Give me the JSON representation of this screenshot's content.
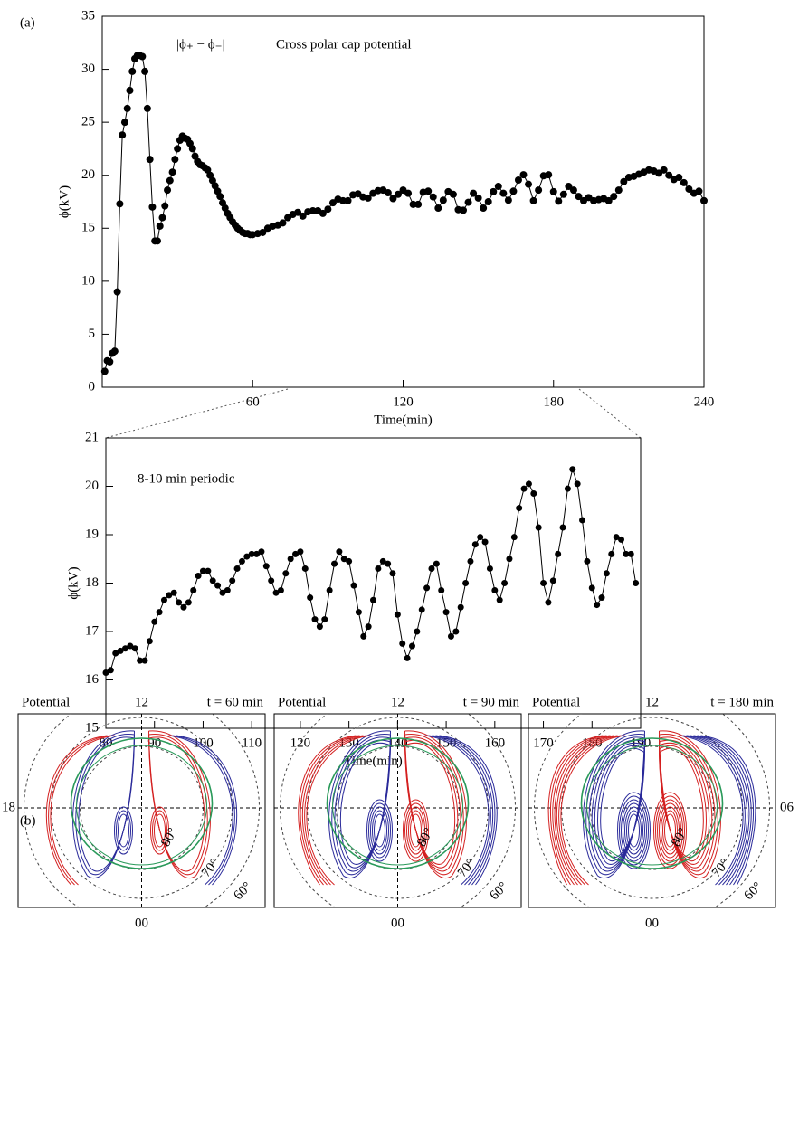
{
  "panel_a_label": "(a)",
  "panel_b_label": "(b)",
  "chart_data": [
    {
      "type": "line",
      "annotation_symbol": "|ϕ₊ − ϕ₋|",
      "annotation": "Cross polar cap potential",
      "x_label": "Time(min)",
      "y_label": "ϕ(kV)",
      "xlim": [
        0,
        240
      ],
      "ylim": [
        0,
        35
      ],
      "xticks": [
        60,
        120,
        180,
        240
      ],
      "yticks": [
        0,
        5,
        10,
        15,
        20,
        25,
        30,
        35
      ],
      "color": "#000000",
      "x": [
        1,
        2,
        3,
        4,
        5,
        6,
        7,
        8,
        9,
        10,
        11,
        12,
        13,
        14,
        15,
        16,
        17,
        18,
        19,
        20,
        21,
        22,
        23,
        24,
        25,
        26,
        27,
        28,
        29,
        30,
        31,
        32,
        33,
        34,
        35,
        36,
        37,
        38,
        39,
        40,
        41,
        42,
        43,
        44,
        45,
        46,
        47,
        48,
        49,
        50,
        51,
        52,
        53,
        54,
        55,
        56,
        57,
        58,
        59,
        60,
        62,
        64,
        66,
        68,
        70,
        72,
        74,
        76,
        78,
        80,
        82,
        84,
        86,
        88,
        90,
        92,
        94,
        96,
        98,
        100,
        102,
        104,
        106,
        108,
        110,
        112,
        114,
        116,
        118,
        120,
        122,
        124,
        126,
        128,
        130,
        132,
        134,
        136,
        138,
        140,
        142,
        144,
        146,
        148,
        150,
        152,
        154,
        156,
        158,
        160,
        162,
        164,
        166,
        168,
        170,
        172,
        174,
        176,
        178,
        180,
        182,
        184,
        186,
        188,
        190,
        192,
        194,
        196,
        198,
        200,
        202,
        204,
        206,
        208,
        210,
        212,
        214,
        216,
        218,
        220,
        222,
        224,
        226,
        228,
        230,
        232,
        234,
        236,
        238,
        240
      ],
      "values": [
        1.5,
        2.5,
        2.4,
        3.2,
        3.4,
        9,
        17.3,
        23.8,
        25,
        26.3,
        28,
        29.8,
        31,
        31.3,
        31.3,
        31.2,
        29.8,
        26.3,
        21.5,
        17,
        13.8,
        13.8,
        15.2,
        16,
        17.1,
        18.6,
        19.5,
        20.3,
        21.5,
        22.5,
        23.3,
        23.7,
        23.5,
        23.4,
        23,
        22.5,
        21.8,
        21.3,
        21,
        20.9,
        20.7,
        20.5,
        20,
        19.5,
        19,
        18.5,
        18,
        17.4,
        16.9,
        16.4,
        16,
        15.6,
        15.3,
        15,
        14.8,
        14.6,
        14.5,
        14.5,
        14.4,
        14.4,
        14.5,
        14.6,
        15,
        15.2,
        15.3,
        15.5,
        16,
        16.3,
        16.5,
        16.15,
        16.55,
        16.65,
        16.65,
        16.4,
        16.8,
        17.4,
        17.75,
        17.6,
        17.6,
        18.15,
        18.25,
        17.95,
        17.85,
        18.3,
        18.55,
        18.6,
        18.35,
        17.8,
        18.2,
        18.6,
        18.3,
        17.25,
        17.25,
        18.4,
        18.5,
        17.95,
        16.9,
        17.65,
        18.45,
        18.2,
        16.75,
        16.7,
        17.45,
        18.3,
        17.85,
        16.9,
        17.5,
        18.45,
        18.95,
        18.3,
        17.65,
        18.5,
        19.55,
        20.05,
        19.15,
        17.6,
        18.6,
        19.95,
        20.05,
        18.45,
        17.55,
        18.2,
        18.95,
        18.6,
        18.0,
        17.6,
        17.9,
        17.6,
        17.7,
        17.8,
        17.6,
        18.0,
        18.6,
        19.4,
        19.8,
        19.9,
        20.1,
        20.3,
        20.5,
        20.4,
        20.2,
        20.5,
        20.0,
        19.6,
        19.8,
        19.3,
        18.7,
        18.3,
        18.5,
        17.6
      ]
    },
    {
      "type": "line",
      "annotation": "8-10 min periodic",
      "x_label": "Time(min)",
      "y_label": "ϕ(kV)",
      "xlim": [
        80,
        190
      ],
      "ylim": [
        15,
        21
      ],
      "xticks": [
        80,
        90,
        100,
        110,
        120,
        130,
        140,
        150,
        160,
        170,
        180,
        190
      ],
      "yticks": [
        15,
        16,
        17,
        18,
        19,
        20,
        21
      ],
      "color": "#000000",
      "x": [
        80,
        81,
        82,
        83,
        84,
        85,
        86,
        87,
        88,
        89,
        90,
        91,
        92,
        93,
        94,
        95,
        96,
        97,
        98,
        99,
        100,
        101,
        102,
        103,
        104,
        105,
        106,
        107,
        108,
        109,
        110,
        111,
        112,
        113,
        114,
        115,
        116,
        117,
        118,
        119,
        120,
        121,
        122,
        123,
        124,
        125,
        126,
        127,
        128,
        129,
        130,
        131,
        132,
        133,
        134,
        135,
        136,
        137,
        138,
        139,
        140,
        141,
        142,
        143,
        144,
        145,
        146,
        147,
        148,
        149,
        150,
        151,
        152,
        153,
        154,
        155,
        156,
        157,
        158,
        159,
        160,
        161,
        162,
        163,
        164,
        165,
        166,
        167,
        168,
        169,
        170,
        171,
        172,
        173,
        174,
        175,
        176,
        177,
        178,
        179,
        180,
        181,
        182,
        183,
        184,
        185,
        186,
        187,
        188,
        189
      ],
      "values": [
        16.15,
        16.2,
        16.55,
        16.6,
        16.65,
        16.7,
        16.65,
        16.4,
        16.4,
        16.8,
        17.2,
        17.4,
        17.65,
        17.75,
        17.8,
        17.6,
        17.5,
        17.6,
        17.85,
        18.15,
        18.25,
        18.25,
        18.05,
        17.95,
        17.8,
        17.85,
        18.05,
        18.3,
        18.45,
        18.55,
        18.6,
        18.6,
        18.65,
        18.35,
        18.05,
        17.8,
        17.85,
        18.2,
        18.5,
        18.6,
        18.65,
        18.3,
        17.7,
        17.25,
        17.1,
        17.25,
        17.85,
        18.4,
        18.65,
        18.5,
        18.45,
        17.95,
        17.4,
        16.9,
        17.1,
        17.65,
        18.3,
        18.45,
        18.4,
        18.2,
        17.35,
        16.75,
        16.45,
        16.7,
        17,
        17.45,
        17.9,
        18.3,
        18.4,
        17.85,
        17.4,
        16.9,
        17,
        17.5,
        18,
        18.45,
        18.8,
        18.95,
        18.85,
        18.3,
        17.85,
        17.65,
        18,
        18.5,
        18.95,
        19.55,
        19.95,
        20.05,
        19.85,
        19.15,
        18,
        17.6,
        18.05,
        18.6,
        19.15,
        19.95,
        20.35,
        20.05,
        19.3,
        18.45,
        17.9,
        17.55,
        17.7,
        18.2,
        18.6,
        18.95,
        18.9,
        18.6,
        18.6,
        18.0
      ]
    }
  ],
  "polar_panels": {
    "left_label": "18",
    "right_label": "06",
    "bottom_label": "00",
    "top_label": "12",
    "lat_labels": [
      "80°",
      "70°",
      "60°"
    ],
    "panels": [
      {
        "label": "Potential",
        "time": "t = 60 min"
      },
      {
        "label": "Potential",
        "time": "t = 90 min"
      },
      {
        "label": "Potential",
        "time": "t = 180 min"
      }
    ]
  }
}
